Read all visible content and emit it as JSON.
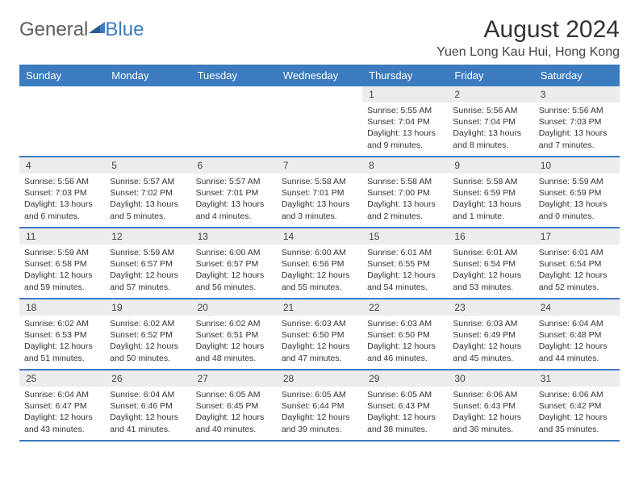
{
  "logo": {
    "part1": "General",
    "part2": "Blue"
  },
  "title": "August 2024",
  "location": "Yuen Long Kau Hui, Hong Kong",
  "colors": {
    "header_bg": "#3c7bbf",
    "daynum_bg": "#ececec",
    "border": "#3c7bbf",
    "text": "#333333"
  },
  "day_headers": [
    "Sunday",
    "Monday",
    "Tuesday",
    "Wednesday",
    "Thursday",
    "Friday",
    "Saturday"
  ],
  "weeks": [
    [
      null,
      null,
      null,
      null,
      {
        "n": "1",
        "sr": "5:55 AM",
        "ss": "7:04 PM",
        "dl": "13 hours and 9 minutes."
      },
      {
        "n": "2",
        "sr": "5:56 AM",
        "ss": "7:04 PM",
        "dl": "13 hours and 8 minutes."
      },
      {
        "n": "3",
        "sr": "5:56 AM",
        "ss": "7:03 PM",
        "dl": "13 hours and 7 minutes."
      }
    ],
    [
      {
        "n": "4",
        "sr": "5:56 AM",
        "ss": "7:03 PM",
        "dl": "13 hours and 6 minutes."
      },
      {
        "n": "5",
        "sr": "5:57 AM",
        "ss": "7:02 PM",
        "dl": "13 hours and 5 minutes."
      },
      {
        "n": "6",
        "sr": "5:57 AM",
        "ss": "7:01 PM",
        "dl": "13 hours and 4 minutes."
      },
      {
        "n": "7",
        "sr": "5:58 AM",
        "ss": "7:01 PM",
        "dl": "13 hours and 3 minutes."
      },
      {
        "n": "8",
        "sr": "5:58 AM",
        "ss": "7:00 PM",
        "dl": "13 hours and 2 minutes."
      },
      {
        "n": "9",
        "sr": "5:58 AM",
        "ss": "6:59 PM",
        "dl": "13 hours and 1 minute."
      },
      {
        "n": "10",
        "sr": "5:59 AM",
        "ss": "6:59 PM",
        "dl": "13 hours and 0 minutes."
      }
    ],
    [
      {
        "n": "11",
        "sr": "5:59 AM",
        "ss": "6:58 PM",
        "dl": "12 hours and 59 minutes."
      },
      {
        "n": "12",
        "sr": "5:59 AM",
        "ss": "6:57 PM",
        "dl": "12 hours and 57 minutes."
      },
      {
        "n": "13",
        "sr": "6:00 AM",
        "ss": "6:57 PM",
        "dl": "12 hours and 56 minutes."
      },
      {
        "n": "14",
        "sr": "6:00 AM",
        "ss": "6:56 PM",
        "dl": "12 hours and 55 minutes."
      },
      {
        "n": "15",
        "sr": "6:01 AM",
        "ss": "6:55 PM",
        "dl": "12 hours and 54 minutes."
      },
      {
        "n": "16",
        "sr": "6:01 AM",
        "ss": "6:54 PM",
        "dl": "12 hours and 53 minutes."
      },
      {
        "n": "17",
        "sr": "6:01 AM",
        "ss": "6:54 PM",
        "dl": "12 hours and 52 minutes."
      }
    ],
    [
      {
        "n": "18",
        "sr": "6:02 AM",
        "ss": "6:53 PM",
        "dl": "12 hours and 51 minutes."
      },
      {
        "n": "19",
        "sr": "6:02 AM",
        "ss": "6:52 PM",
        "dl": "12 hours and 50 minutes."
      },
      {
        "n": "20",
        "sr": "6:02 AM",
        "ss": "6:51 PM",
        "dl": "12 hours and 48 minutes."
      },
      {
        "n": "21",
        "sr": "6:03 AM",
        "ss": "6:50 PM",
        "dl": "12 hours and 47 minutes."
      },
      {
        "n": "22",
        "sr": "6:03 AM",
        "ss": "6:50 PM",
        "dl": "12 hours and 46 minutes."
      },
      {
        "n": "23",
        "sr": "6:03 AM",
        "ss": "6:49 PM",
        "dl": "12 hours and 45 minutes."
      },
      {
        "n": "24",
        "sr": "6:04 AM",
        "ss": "6:48 PM",
        "dl": "12 hours and 44 minutes."
      }
    ],
    [
      {
        "n": "25",
        "sr": "6:04 AM",
        "ss": "6:47 PM",
        "dl": "12 hours and 43 minutes."
      },
      {
        "n": "26",
        "sr": "6:04 AM",
        "ss": "6:46 PM",
        "dl": "12 hours and 41 minutes."
      },
      {
        "n": "27",
        "sr": "6:05 AM",
        "ss": "6:45 PM",
        "dl": "12 hours and 40 minutes."
      },
      {
        "n": "28",
        "sr": "6:05 AM",
        "ss": "6:44 PM",
        "dl": "12 hours and 39 minutes."
      },
      {
        "n": "29",
        "sr": "6:05 AM",
        "ss": "6:43 PM",
        "dl": "12 hours and 38 minutes."
      },
      {
        "n": "30",
        "sr": "6:06 AM",
        "ss": "6:43 PM",
        "dl": "12 hours and 36 minutes."
      },
      {
        "n": "31",
        "sr": "6:06 AM",
        "ss": "6:42 PM",
        "dl": "12 hours and 35 minutes."
      }
    ]
  ],
  "labels": {
    "sunrise": "Sunrise: ",
    "sunset": "Sunset: ",
    "daylight": "Daylight: "
  }
}
